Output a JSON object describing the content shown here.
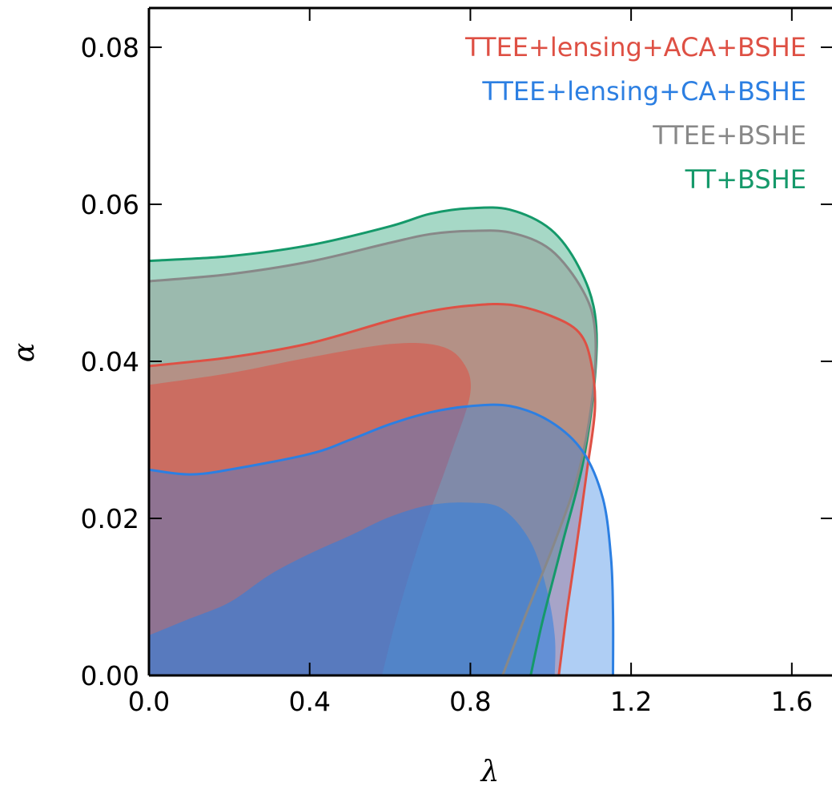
{
  "chart_data": {
    "type": "area",
    "xlabel": "λ",
    "ylabel": "α",
    "xlim": [
      0.0,
      1.7
    ],
    "ylim": [
      0.0,
      0.085
    ],
    "x_ticks": [
      "0.0",
      "0.4",
      "0.8",
      "1.2",
      "1.6"
    ],
    "y_ticks": [
      "0.00",
      "0.02",
      "0.04",
      "0.06",
      "0.08"
    ],
    "legend_position": "top-right",
    "grid": false,
    "colors": {
      "red": "#de5044",
      "blue": "#2c7fe2",
      "gray": "#888888",
      "green": "#15996a"
    },
    "series": [
      {
        "name": "TTEE+lensing+ACA+BSHE",
        "color": "red",
        "contour_2sigma": [
          [
            0.0,
            0.0394
          ],
          [
            0.2,
            0.0405
          ],
          [
            0.4,
            0.0423
          ],
          [
            0.6,
            0.0452
          ],
          [
            0.7,
            0.0464
          ],
          [
            0.8,
            0.0471
          ],
          [
            0.9,
            0.0472
          ],
          [
            1.0,
            0.0458
          ],
          [
            1.07,
            0.0437
          ],
          [
            1.1,
            0.04
          ],
          [
            1.11,
            0.034
          ],
          [
            1.09,
            0.026
          ],
          [
            1.06,
            0.015
          ],
          [
            1.04,
            0.008
          ],
          [
            1.025,
            0.002
          ],
          [
            1.02,
            0.0
          ]
        ],
        "contour_1sigma": [
          [
            0.0,
            0.037
          ],
          [
            0.2,
            0.0385
          ],
          [
            0.4,
            0.0405
          ],
          [
            0.6,
            0.0422
          ],
          [
            0.72,
            0.042
          ],
          [
            0.78,
            0.04
          ],
          [
            0.8,
            0.036
          ],
          [
            0.75,
            0.028
          ],
          [
            0.68,
            0.018
          ],
          [
            0.62,
            0.008
          ],
          [
            0.58,
            0.0
          ]
        ]
      },
      {
        "name": "TTEE+lensing+CA+BSHE",
        "color": "blue",
        "contour_2sigma": [
          [
            0.0,
            0.0262
          ],
          [
            0.1,
            0.0256
          ],
          [
            0.2,
            0.0262
          ],
          [
            0.4,
            0.0282
          ],
          [
            0.5,
            0.03
          ],
          [
            0.6,
            0.032
          ],
          [
            0.7,
            0.0335
          ],
          [
            0.8,
            0.0343
          ],
          [
            0.9,
            0.0343
          ],
          [
            1.0,
            0.0323
          ],
          [
            1.08,
            0.0285
          ],
          [
            1.13,
            0.0225
          ],
          [
            1.15,
            0.015
          ],
          [
            1.155,
            0.008
          ],
          [
            1.155,
            0.0
          ]
        ],
        "contour_1sigma": [
          [
            0.0,
            0.0051
          ],
          [
            0.1,
            0.0072
          ],
          [
            0.2,
            0.0093
          ],
          [
            0.3,
            0.0128
          ],
          [
            0.4,
            0.0155
          ],
          [
            0.5,
            0.0178
          ],
          [
            0.6,
            0.0202
          ],
          [
            0.7,
            0.0217
          ],
          [
            0.8,
            0.022
          ],
          [
            0.88,
            0.0212
          ],
          [
            0.95,
            0.017
          ],
          [
            0.99,
            0.011
          ],
          [
            1.01,
            0.005
          ],
          [
            1.01,
            0.0
          ]
        ]
      },
      {
        "name": "TTEE+BSHE",
        "color": "gray",
        "contour_2sigma": [
          [
            0.0,
            0.0502
          ],
          [
            0.2,
            0.0511
          ],
          [
            0.4,
            0.0527
          ],
          [
            0.6,
            0.0551
          ],
          [
            0.7,
            0.0562
          ],
          [
            0.8,
            0.0566
          ],
          [
            0.9,
            0.0564
          ],
          [
            1.0,
            0.0542
          ],
          [
            1.08,
            0.049
          ],
          [
            1.11,
            0.044
          ],
          [
            1.105,
            0.036
          ],
          [
            1.07,
            0.026
          ],
          [
            1.01,
            0.017
          ],
          [
            0.94,
            0.008
          ],
          [
            0.88,
            0.0
          ]
        ]
      },
      {
        "name": "TT+BSHE",
        "color": "green",
        "contour_2sigma": [
          [
            0.0,
            0.0528
          ],
          [
            0.2,
            0.0534
          ],
          [
            0.4,
            0.0548
          ],
          [
            0.6,
            0.0572
          ],
          [
            0.7,
            0.0588
          ],
          [
            0.8,
            0.0595
          ],
          [
            0.9,
            0.0593
          ],
          [
            1.0,
            0.0568
          ],
          [
            1.07,
            0.052
          ],
          [
            1.11,
            0.046
          ],
          [
            1.11,
            0.038
          ],
          [
            1.08,
            0.027
          ],
          [
            1.03,
            0.017
          ],
          [
            0.98,
            0.007
          ],
          [
            0.95,
            0.0
          ]
        ]
      }
    ]
  }
}
